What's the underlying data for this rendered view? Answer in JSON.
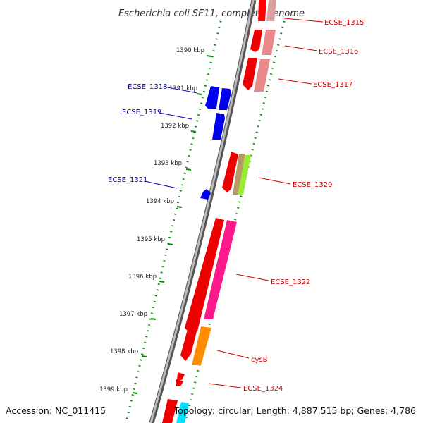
{
  "title": "Escherichia coli SE11, complete genome",
  "accession": "Accession: NC_011415",
  "summary": "Topology: circular; Length: 4,887,515 bp; Genes: 4,786",
  "ticks": [
    "1390 kbp",
    "1391 kbp",
    "1392 kbp",
    "1393 kbp",
    "1394 kbp",
    "1395 kbp",
    "1396 kbp",
    "1397 kbp",
    "1398 kbp",
    "1399 kbp"
  ],
  "gene_labels": {
    "ecse_1315": "ECSE_1315",
    "ecse_1316": "ECSE_1316",
    "ecse_1317": "ECSE_1317",
    "ecse_1318": "ECSE_1318",
    "ecse_1319": "ECSE_1319",
    "ecse_1320": "ECSE_1320",
    "ecse_1321": "ECSE_1321",
    "ecse_1322": "ECSE_1322",
    "cysB": "cysB",
    "ecse_1324": "ECSE_1324"
  },
  "colors": {
    "forward_label": "#cc0000",
    "reverse_label": "#0000aa",
    "cds": "#ff0000",
    "reverse_cds": "#0000ee",
    "backbone": "#888888",
    "tick_dots": "#008800"
  }
}
